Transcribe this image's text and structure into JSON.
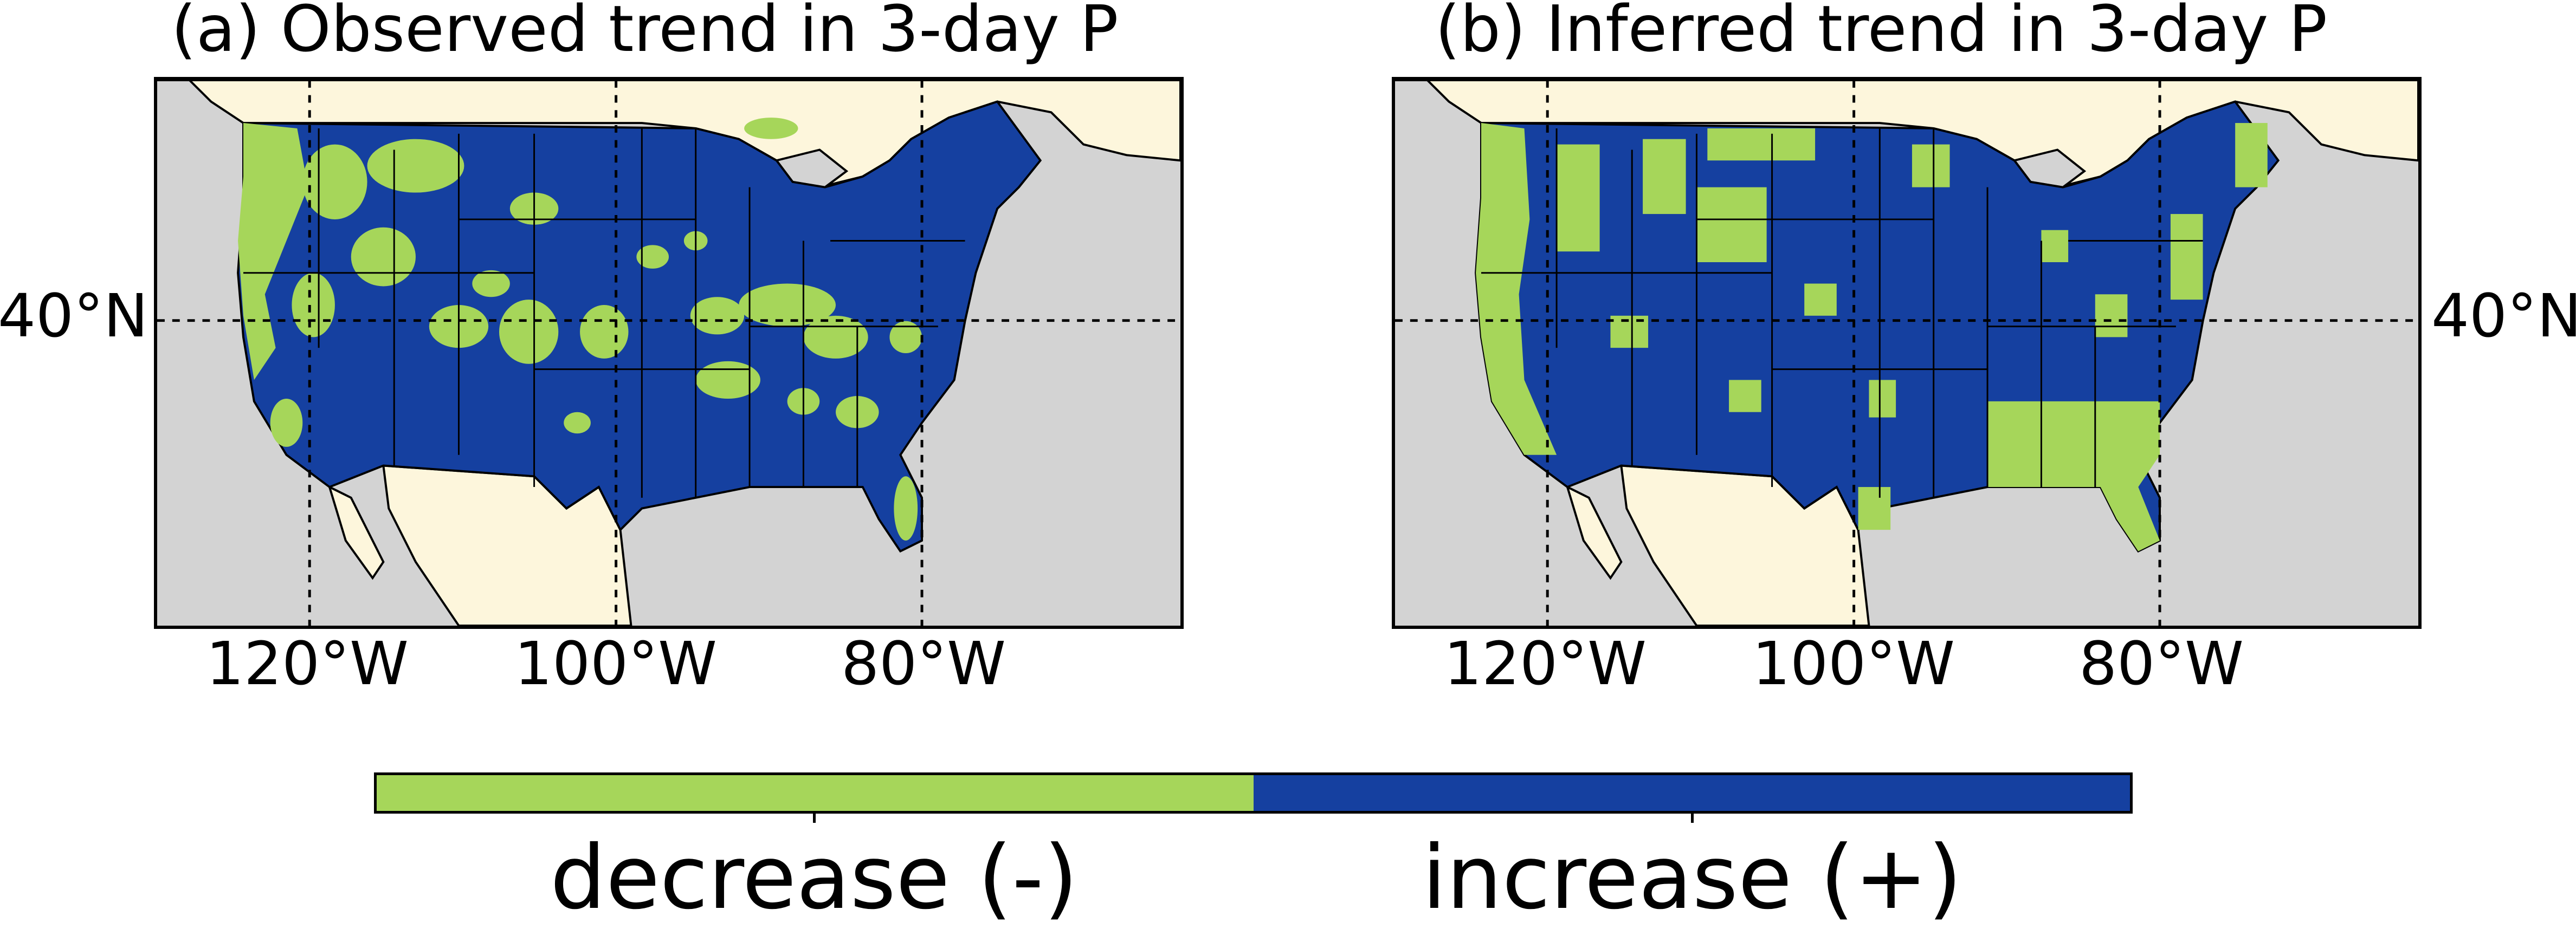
{
  "panels": [
    {
      "title": "(a) Observed trend in 3-day P",
      "x_ticks": [
        "120°W",
        "100°W",
        "80°W"
      ],
      "y_tick": "40°N"
    },
    {
      "title": "(b) Inferred trend in 3-day P",
      "x_ticks": [
        "120°W",
        "100°W",
        "80°W"
      ],
      "y_tick": "40°N"
    }
  ],
  "colorbar": {
    "categories": [
      "decrease (-)",
      "increase (+)"
    ],
    "colors": [
      "#a6d65a",
      "#1540a0"
    ]
  },
  "map_colors": {
    "ocean": "#d3d3d3",
    "land_outside": "#fdf6dc",
    "increase": "#1540a0",
    "decrease": "#a6d65a",
    "borders": "#000000"
  }
}
